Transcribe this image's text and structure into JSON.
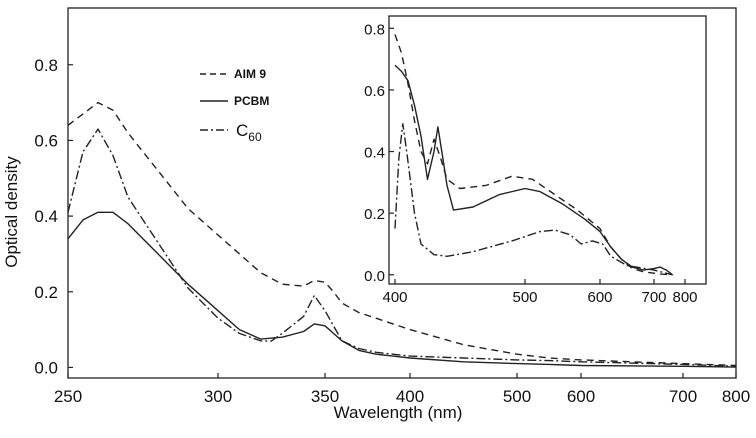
{
  "chart_data": [
    {
      "type": "line",
      "title": "",
      "xlabel": "Wavelength (nm)",
      "ylabel": "Optical density",
      "xlim": [
        250,
        800
      ],
      "ylim": [
        -0.02,
        0.95
      ],
      "x_ticks": [
        {
          "value": 250,
          "label": "250"
        },
        {
          "value": 300,
          "label": "300"
        },
        {
          "value": 350,
          "label": "350"
        },
        {
          "value": 400,
          "label": "400"
        },
        {
          "value": 500,
          "label": "500"
        },
        {
          "value": 600,
          "label": "600"
        },
        {
          "value": 700,
          "label": "700"
        },
        {
          "value": 800,
          "label": "800"
        }
      ],
      "y_ticks": [
        {
          "value": 0.0,
          "label": "0.0"
        },
        {
          "value": 0.2,
          "label": "0.2"
        },
        {
          "value": 0.4,
          "label": "0.4"
        },
        {
          "value": 0.6,
          "label": "0.6"
        },
        {
          "value": 0.8,
          "label": "0.8"
        }
      ],
      "legend": {
        "position": "top-left",
        "entries": [
          {
            "label": "AIM 9",
            "style": "dashed"
          },
          {
            "label": "PCBM",
            "style": "solid"
          },
          {
            "label": "C",
            "subscript": "60",
            "style": "dash-dot"
          }
        ]
      },
      "series": [
        {
          "name": "AIM 9",
          "style": "dashed",
          "points": [
            [
              250,
              0.64
            ],
            [
              255,
              0.67
            ],
            [
              260,
              0.7
            ],
            [
              265,
              0.68
            ],
            [
              270,
              0.62
            ],
            [
              280,
              0.52
            ],
            [
              290,
              0.42
            ],
            [
              300,
              0.35
            ],
            [
              310,
              0.3
            ],
            [
              320,
              0.25
            ],
            [
              330,
              0.22
            ],
            [
              340,
              0.215
            ],
            [
              345,
              0.23
            ],
            [
              350,
              0.225
            ],
            [
              355,
              0.2
            ],
            [
              360,
              0.17
            ],
            [
              370,
              0.145
            ],
            [
              380,
              0.13
            ],
            [
              390,
              0.115
            ],
            [
              400,
              0.1
            ],
            [
              450,
              0.06
            ],
            [
              500,
              0.035
            ],
            [
              550,
              0.025
            ],
            [
              600,
              0.02
            ],
            [
              650,
              0.015
            ],
            [
              700,
              0.01
            ],
            [
              800,
              0.005
            ]
          ]
        },
        {
          "name": "PCBM",
          "style": "solid",
          "points": [
            [
              250,
              0.34
            ],
            [
              255,
              0.39
            ],
            [
              260,
              0.41
            ],
            [
              265,
              0.41
            ],
            [
              270,
              0.38
            ],
            [
              280,
              0.3
            ],
            [
              290,
              0.22
            ],
            [
              300,
              0.15
            ],
            [
              310,
              0.1
            ],
            [
              320,
              0.075
            ],
            [
              330,
              0.08
            ],
            [
              340,
              0.095
            ],
            [
              345,
              0.115
            ],
            [
              350,
              0.11
            ],
            [
              355,
              0.09
            ],
            [
              360,
              0.07
            ],
            [
              370,
              0.045
            ],
            [
              380,
              0.035
            ],
            [
              390,
              0.03
            ],
            [
              400,
              0.025
            ],
            [
              450,
              0.015
            ],
            [
              500,
              0.01
            ],
            [
              550,
              0.008
            ],
            [
              600,
              0.005
            ],
            [
              700,
              0.003
            ],
            [
              800,
              0.001
            ]
          ]
        },
        {
          "name": "C60",
          "style": "dash-dot",
          "points": [
            [
              250,
              0.41
            ],
            [
              255,
              0.57
            ],
            [
              260,
              0.63
            ],
            [
              265,
              0.56
            ],
            [
              270,
              0.45
            ],
            [
              280,
              0.33
            ],
            [
              290,
              0.21
            ],
            [
              300,
              0.13
            ],
            [
              310,
              0.09
            ],
            [
              320,
              0.07
            ],
            [
              325,
              0.07
            ],
            [
              330,
              0.09
            ],
            [
              340,
              0.135
            ],
            [
              345,
              0.19
            ],
            [
              350,
              0.15
            ],
            [
              355,
              0.11
            ],
            [
              360,
              0.07
            ],
            [
              370,
              0.05
            ],
            [
              380,
              0.04
            ],
            [
              390,
              0.035
            ],
            [
              400,
              0.03
            ],
            [
              450,
              0.025
            ],
            [
              500,
              0.02
            ],
            [
              550,
              0.018
            ],
            [
              600,
              0.015
            ],
            [
              700,
              0.008
            ],
            [
              800,
              0.003
            ]
          ]
        }
      ]
    },
    {
      "type": "line",
      "title": "",
      "xlabel": "",
      "ylabel": "",
      "xlim": [
        400,
        820
      ],
      "ylim": [
        -0.03,
        0.84
      ],
      "x_ticks": [
        {
          "value": 400,
          "label": "400"
        },
        {
          "value": 500,
          "label": "500"
        },
        {
          "value": 600,
          "label": "600"
        },
        {
          "value": 700,
          "label": "700"
        },
        {
          "value": 800,
          "label": "800"
        }
      ],
      "y_ticks": [
        {
          "value": 0.0,
          "label": "0.0"
        },
        {
          "value": 0.2,
          "label": "0.2"
        },
        {
          "value": 0.4,
          "label": "0.4"
        },
        {
          "value": 0.6,
          "label": "0.6"
        },
        {
          "value": 0.8,
          "label": "0.8"
        }
      ],
      "series": [
        {
          "name": "AIM 9",
          "style": "dashed",
          "points": [
            [
              400,
              0.78
            ],
            [
              405,
              0.72
            ],
            [
              410,
              0.62
            ],
            [
              415,
              0.5
            ],
            [
              420,
              0.4
            ],
            [
              425,
              0.36
            ],
            [
              430,
              0.44
            ],
            [
              435,
              0.38
            ],
            [
              440,
              0.31
            ],
            [
              450,
              0.28
            ],
            [
              470,
              0.29
            ],
            [
              490,
              0.32
            ],
            [
              510,
              0.31
            ],
            [
              540,
              0.26
            ],
            [
              570,
              0.21
            ],
            [
              600,
              0.15
            ],
            [
              620,
              0.09
            ],
            [
              640,
              0.05
            ],
            [
              660,
              0.02
            ],
            [
              680,
              0.01
            ],
            [
              700,
              0.005
            ],
            [
              720,
              0.002
            ],
            [
              760,
              0.0
            ]
          ]
        },
        {
          "name": "PCBM",
          "style": "solid",
          "points": [
            [
              400,
              0.68
            ],
            [
              405,
              0.66
            ],
            [
              410,
              0.63
            ],
            [
              415,
              0.55
            ],
            [
              420,
              0.45
            ],
            [
              425,
              0.31
            ],
            [
              430,
              0.4
            ],
            [
              433,
              0.48
            ],
            [
              436,
              0.4
            ],
            [
              440,
              0.29
            ],
            [
              445,
              0.21
            ],
            [
              460,
              0.22
            ],
            [
              480,
              0.26
            ],
            [
              500,
              0.28
            ],
            [
              520,
              0.27
            ],
            [
              550,
              0.23
            ],
            [
              580,
              0.18
            ],
            [
              600,
              0.14
            ],
            [
              620,
              0.09
            ],
            [
              640,
              0.05
            ],
            [
              660,
              0.025
            ],
            [
              680,
              0.015
            ],
            [
              700,
              0.02
            ],
            [
              720,
              0.025
            ],
            [
              740,
              0.015
            ],
            [
              760,
              0.0
            ]
          ]
        },
        {
          "name": "C60",
          "style": "dash-dot",
          "points": [
            [
              400,
              0.15
            ],
            [
              403,
              0.38
            ],
            [
              406,
              0.49
            ],
            [
              409,
              0.4
            ],
            [
              415,
              0.2
            ],
            [
              420,
              0.1
            ],
            [
              430,
              0.065
            ],
            [
              440,
              0.06
            ],
            [
              460,
              0.075
            ],
            [
              490,
              0.11
            ],
            [
              520,
              0.14
            ],
            [
              540,
              0.145
            ],
            [
              560,
              0.13
            ],
            [
              575,
              0.1
            ],
            [
              590,
              0.11
            ],
            [
              605,
              0.1
            ],
            [
              620,
              0.06
            ],
            [
              650,
              0.03
            ],
            [
              700,
              0.015
            ],
            [
              760,
              0.0
            ]
          ]
        }
      ]
    }
  ]
}
